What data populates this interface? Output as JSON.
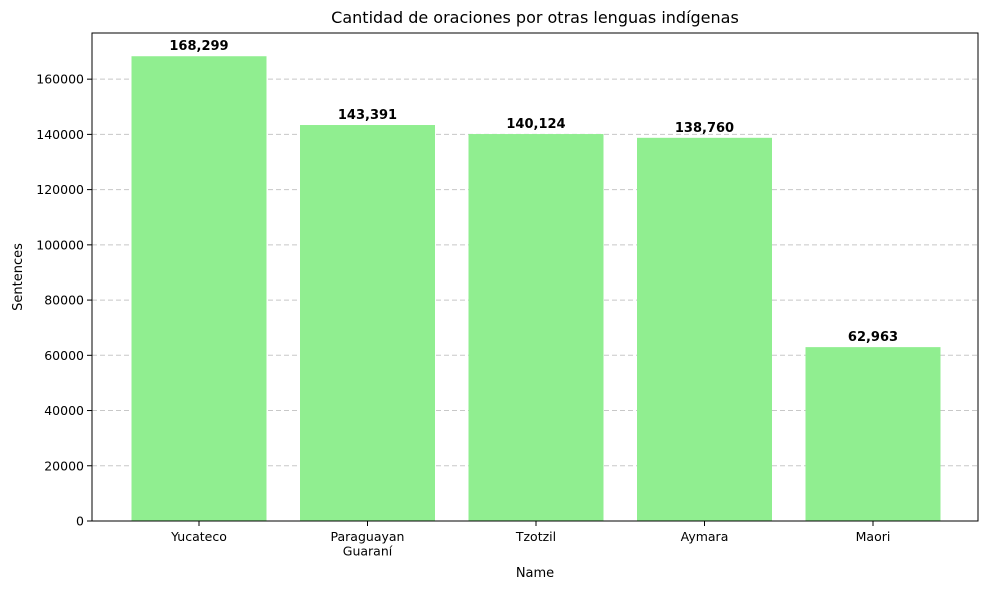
{
  "chart_data": {
    "type": "bar",
    "title": "Cantidad de oraciones por otras lenguas indígenas",
    "xlabel": "Name",
    "ylabel": "Sentences",
    "categories": [
      [
        "Yucateco"
      ],
      [
        "Paraguayan",
        "Guaraní"
      ],
      [
        "Tzotzil"
      ],
      [
        "Aymara"
      ],
      [
        "Maori"
      ]
    ],
    "values": [
      168299,
      143391,
      140124,
      138760,
      62963
    ],
    "value_labels": [
      "168,299",
      "143,391",
      "140,124",
      "138,760",
      "62,963"
    ],
    "ylim": [
      0,
      176713.95
    ],
    "yticks": [
      0,
      20000,
      40000,
      60000,
      80000,
      100000,
      120000,
      140000,
      160000
    ],
    "ytick_labels": [
      "0",
      "20000",
      "40000",
      "60000",
      "80000",
      "100000",
      "120000",
      "140000",
      "160000"
    ],
    "grid": "y-dashed",
    "bar_color": "#90ee90",
    "grid_color": "#c8c8c8",
    "axis_color": "#000000"
  }
}
